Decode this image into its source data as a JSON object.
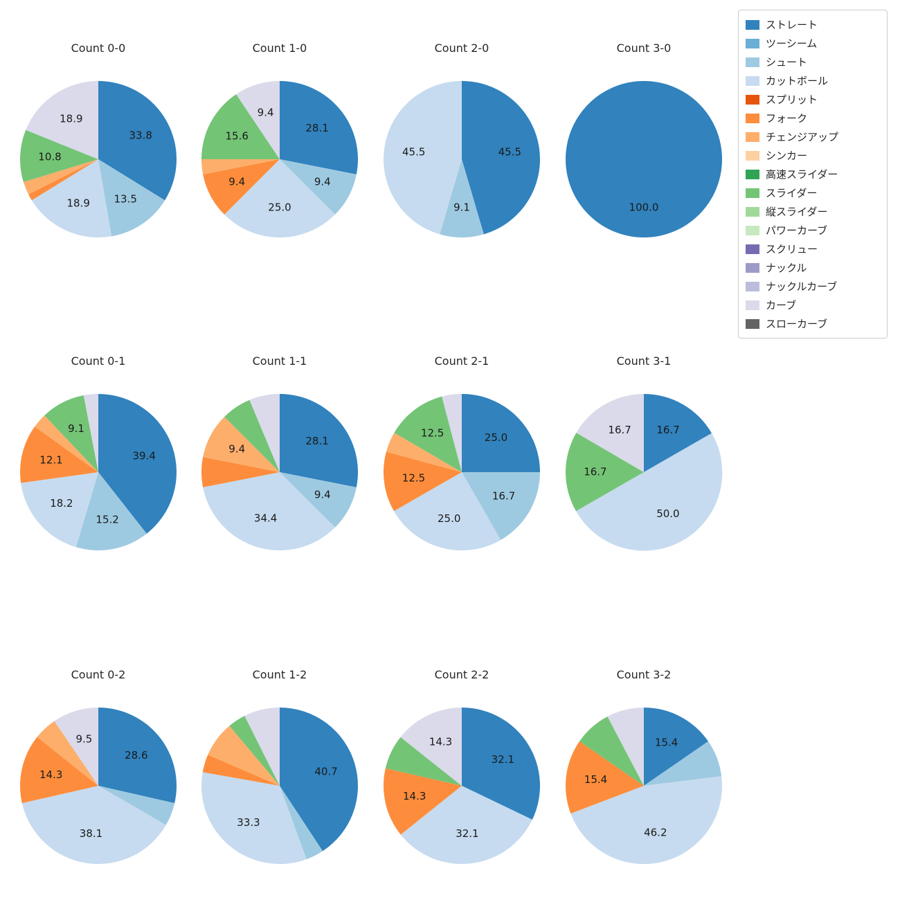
{
  "legend": {
    "items": [
      {
        "label": "ストレート",
        "color": "#3182bd"
      },
      {
        "label": "ツーシーム",
        "color": "#6baed6"
      },
      {
        "label": "シュート",
        "color": "#9ecae1"
      },
      {
        "label": "カットボール",
        "color": "#c6dbef"
      },
      {
        "label": "スプリット",
        "color": "#e6550d"
      },
      {
        "label": "フォーク",
        "color": "#fd8d3c"
      },
      {
        "label": "チェンジアップ",
        "color": "#fdae6b"
      },
      {
        "label": "シンカー",
        "color": "#fdd0a2"
      },
      {
        "label": "高速スライダー",
        "color": "#31a354"
      },
      {
        "label": "スライダー",
        "color": "#74c476"
      },
      {
        "label": "縦スライダー",
        "color": "#a1d99b"
      },
      {
        "label": "パワーカーブ",
        "color": "#c7e9c0"
      },
      {
        "label": "スクリュー",
        "color": "#756bb1"
      },
      {
        "label": "ナックル",
        "color": "#9e9ac8"
      },
      {
        "label": "ナックルカーブ",
        "color": "#bcbddc"
      },
      {
        "label": "カーブ",
        "color": "#dadaeb"
      },
      {
        "label": "スローカーブ",
        "color": "#636363"
      }
    ]
  },
  "chart_data": {
    "type": "pie",
    "layout": "4x3 grid of pie charts, percentages clockwise from top, legend at top right",
    "pies": [
      {
        "title": "Count 0-0",
        "slices": [
          {
            "name": "ストレート",
            "value": 33.8,
            "label": "33.8"
          },
          {
            "name": "シュート",
            "value": 13.5,
            "label": "13.5"
          },
          {
            "name": "カットボール",
            "value": 18.9,
            "label": "18.9"
          },
          {
            "name": "フォーク",
            "value": 1.4,
            "label": ""
          },
          {
            "name": "チェンジアップ",
            "value": 2.7,
            "label": ""
          },
          {
            "name": "スライダー",
            "value": 10.8,
            "label": "10.8"
          },
          {
            "name": "カーブ",
            "value": 18.9,
            "label": "18.9"
          }
        ]
      },
      {
        "title": "Count 1-0",
        "slices": [
          {
            "name": "ストレート",
            "value": 28.1,
            "label": "28.1"
          },
          {
            "name": "シュート",
            "value": 9.4,
            "label": "9.4"
          },
          {
            "name": "カットボール",
            "value": 25.0,
            "label": "25.0"
          },
          {
            "name": "フォーク",
            "value": 9.4,
            "label": "9.4"
          },
          {
            "name": "チェンジアップ",
            "value": 3.1,
            "label": ""
          },
          {
            "name": "スライダー",
            "value": 15.6,
            "label": "15.6"
          },
          {
            "name": "カーブ",
            "value": 9.4,
            "label": "9.4"
          }
        ]
      },
      {
        "title": "Count 2-0",
        "slices": [
          {
            "name": "ストレート",
            "value": 45.5,
            "label": "45.5"
          },
          {
            "name": "シュート",
            "value": 9.1,
            "label": "9.1"
          },
          {
            "name": "カットボール",
            "value": 45.5,
            "label": "45.5"
          }
        ]
      },
      {
        "title": "Count 3-0",
        "slices": [
          {
            "name": "ストレート",
            "value": 100.0,
            "label": "100.0"
          }
        ]
      },
      {
        "title": "Count 0-1",
        "slices": [
          {
            "name": "ストレート",
            "value": 39.4,
            "label": "39.4"
          },
          {
            "name": "シュート",
            "value": 15.2,
            "label": "15.2"
          },
          {
            "name": "カットボール",
            "value": 18.2,
            "label": "18.2"
          },
          {
            "name": "フォーク",
            "value": 12.1,
            "label": "12.1"
          },
          {
            "name": "チェンジアップ",
            "value": 3.0,
            "label": ""
          },
          {
            "name": "スライダー",
            "value": 9.1,
            "label": "9.1"
          },
          {
            "name": "カーブ",
            "value": 3.0,
            "label": ""
          }
        ]
      },
      {
        "title": "Count 1-1",
        "slices": [
          {
            "name": "ストレート",
            "value": 28.1,
            "label": "28.1"
          },
          {
            "name": "シュート",
            "value": 9.4,
            "label": "9.4"
          },
          {
            "name": "カットボール",
            "value": 34.4,
            "label": "34.4"
          },
          {
            "name": "フォーク",
            "value": 6.2,
            "label": ""
          },
          {
            "name": "チェンジアップ",
            "value": 9.4,
            "label": "9.4"
          },
          {
            "name": "スライダー",
            "value": 6.2,
            "label": ""
          },
          {
            "name": "カーブ",
            "value": 6.3,
            "label": ""
          }
        ]
      },
      {
        "title": "Count 2-1",
        "slices": [
          {
            "name": "ストレート",
            "value": 25.0,
            "label": "25.0"
          },
          {
            "name": "シュート",
            "value": 16.7,
            "label": "16.7"
          },
          {
            "name": "カットボール",
            "value": 25.0,
            "label": "25.0"
          },
          {
            "name": "フォーク",
            "value": 12.5,
            "label": "12.5"
          },
          {
            "name": "チェンジアップ",
            "value": 4.2,
            "label": ""
          },
          {
            "name": "スライダー",
            "value": 12.5,
            "label": "12.5"
          },
          {
            "name": "カーブ",
            "value": 4.1,
            "label": ""
          }
        ]
      },
      {
        "title": "Count 3-1",
        "slices": [
          {
            "name": "ストレート",
            "value": 16.7,
            "label": "16.7"
          },
          {
            "name": "カットボール",
            "value": 50.0,
            "label": "50.0"
          },
          {
            "name": "スライダー",
            "value": 16.7,
            "label": "16.7"
          },
          {
            "name": "カーブ",
            "value": 16.6,
            "label": "16.7"
          }
        ]
      },
      {
        "title": "Count 0-2",
        "slices": [
          {
            "name": "ストレート",
            "value": 28.6,
            "label": "28.6"
          },
          {
            "name": "シュート",
            "value": 4.8,
            "label": ""
          },
          {
            "name": "カットボール",
            "value": 38.1,
            "label": "38.1"
          },
          {
            "name": "フォーク",
            "value": 14.3,
            "label": "14.3"
          },
          {
            "name": "チェンジアップ",
            "value": 4.8,
            "label": ""
          },
          {
            "name": "カーブ",
            "value": 9.5,
            "label": "9.5"
          }
        ]
      },
      {
        "title": "Count 1-2",
        "slices": [
          {
            "name": "ストレート",
            "value": 40.7,
            "label": "40.7"
          },
          {
            "name": "シュート",
            "value": 3.7,
            "label": ""
          },
          {
            "name": "カットボール",
            "value": 33.3,
            "label": "33.3"
          },
          {
            "name": "フォーク",
            "value": 3.7,
            "label": ""
          },
          {
            "name": "チェンジアップ",
            "value": 7.4,
            "label": ""
          },
          {
            "name": "スライダー",
            "value": 3.7,
            "label": ""
          },
          {
            "name": "カーブ",
            "value": 7.4,
            "label": ""
          }
        ]
      },
      {
        "title": "Count 2-2",
        "slices": [
          {
            "name": "ストレート",
            "value": 32.1,
            "label": "32.1"
          },
          {
            "name": "カットボール",
            "value": 32.1,
            "label": "32.1"
          },
          {
            "name": "フォーク",
            "value": 14.3,
            "label": "14.3"
          },
          {
            "name": "スライダー",
            "value": 7.1,
            "label": ""
          },
          {
            "name": "カーブ",
            "value": 14.3,
            "label": "14.3"
          }
        ]
      },
      {
        "title": "Count 3-2",
        "slices": [
          {
            "name": "ストレート",
            "value": 15.4,
            "label": "15.4"
          },
          {
            "name": "シュート",
            "value": 7.7,
            "label": ""
          },
          {
            "name": "カットボール",
            "value": 46.2,
            "label": "46.2"
          },
          {
            "name": "フォーク",
            "value": 15.4,
            "label": "15.4"
          },
          {
            "name": "スライダー",
            "value": 7.7,
            "label": ""
          },
          {
            "name": "カーブ",
            "value": 7.7,
            "label": ""
          }
        ]
      }
    ]
  }
}
